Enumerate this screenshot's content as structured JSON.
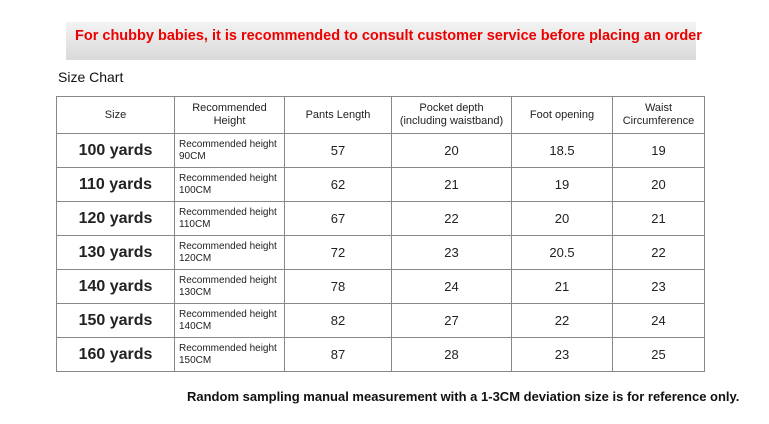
{
  "banner": "For chubby babies, it is recommended to consult customer service before placing an order",
  "heading": "Size Chart",
  "table": {
    "headers": [
      "Size",
      "Recommended Height",
      "Pants Length",
      "Pocket depth (including waistband)",
      "Foot opening",
      "Waist Circumference"
    ],
    "rows": [
      [
        "100 yards",
        "Recommended height 90CM",
        57,
        20,
        18.5,
        19
      ],
      [
        "110 yards",
        "Recommended height 100CM",
        62,
        21,
        19,
        20
      ],
      [
        "120 yards",
        "Recommended height 110CM",
        67,
        22,
        20,
        21
      ],
      [
        "130 yards",
        "Recommended height 120CM",
        72,
        23,
        20.5,
        22
      ],
      [
        "140 yards",
        "Recommended height 130CM",
        78,
        24,
        21,
        23
      ],
      [
        "150 yards",
        "Recommended height 140CM",
        82,
        27,
        22,
        24
      ],
      [
        "160 yards",
        "Recommended height 150CM",
        87,
        28,
        23,
        25
      ]
    ]
  },
  "note": "Random sampling manual measurement with a 1-3CM deviation size is for reference only."
}
